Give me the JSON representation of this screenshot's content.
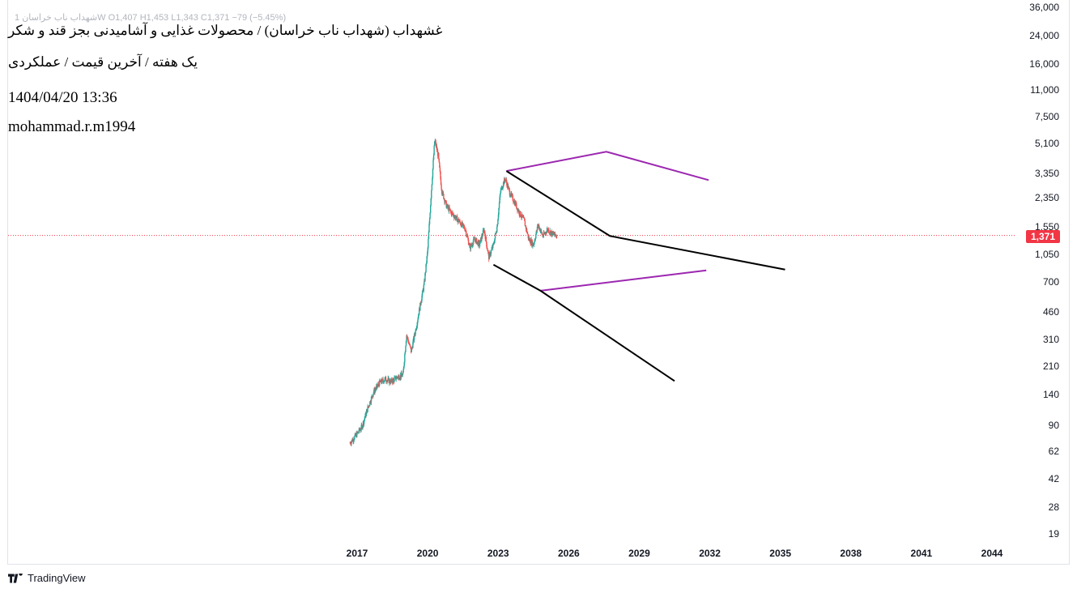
{
  "legend": {
    "ohlc_text": "1  شهداب ناب خراسانW  O1,407  H1,453  L1,343  C1,371  −79 (−5.45%)"
  },
  "overlay": {
    "title": "غشهداب (شهداب ناب خراسان) / محصولات غذایی و آشامیدنی بجز قند و شکر",
    "subtitle": "یک هفته / آخرین قیمت / عملکردی",
    "datetime": "1404/04/20 13:36",
    "author": "mohammad.r.m1994"
  },
  "last_price_label": "1,371",
  "brand": "TradingView",
  "colors": {
    "up": "#26a69a",
    "down": "#ef5350",
    "purple": "#9c27b0",
    "black": "#000000",
    "last_line": "#f23645"
  },
  "chart_data": {
    "type": "candlestick",
    "yscale": "log",
    "y_ticks": [
      19,
      28,
      42,
      62,
      90,
      140,
      210,
      310,
      460,
      700,
      1050,
      1550,
      2350,
      3350,
      5100,
      7500,
      11000,
      16000,
      24000,
      36000
    ],
    "y_tick_labels": [
      "19",
      "28",
      "42",
      "62",
      "90",
      "140",
      "210",
      "310",
      "460",
      "700",
      "1,050",
      "1,550",
      "2,350",
      "3,350",
      "5,100",
      "7,500",
      "11,000",
      "16,000",
      "24,000",
      "36,000"
    ],
    "x_ticks": [
      2017,
      2020,
      2023,
      2026,
      2029,
      2032,
      2035,
      2038,
      2041,
      2044
    ],
    "x_tick_labels": [
      "2017",
      "2020",
      "2023",
      "2026",
      "2029",
      "2032",
      "2035",
      "2038",
      "2041",
      "2044"
    ],
    "last_price": 1371,
    "price_path": [
      [
        2016.7,
        70
      ],
      [
        2016.95,
        78
      ],
      [
        2017.2,
        88
      ],
      [
        2017.45,
        115
      ],
      [
        2017.7,
        145
      ],
      [
        2017.95,
        165
      ],
      [
        2018.2,
        175
      ],
      [
        2018.45,
        168
      ],
      [
        2018.7,
        180
      ],
      [
        2018.95,
        185
      ],
      [
        2019.1,
        330
      ],
      [
        2019.3,
        260
      ],
      [
        2019.5,
        360
      ],
      [
        2019.7,
        520
      ],
      [
        2019.85,
        680
      ],
      [
        2020.0,
        1100
      ],
      [
        2020.15,
        2500
      ],
      [
        2020.3,
        5400
      ],
      [
        2020.45,
        4300
      ],
      [
        2020.6,
        2600
      ],
      [
        2020.8,
        2100
      ],
      [
        2021.0,
        1900
      ],
      [
        2021.3,
        1700
      ],
      [
        2021.6,
        1500
      ],
      [
        2021.8,
        1150
      ],
      [
        2022.0,
        1300
      ],
      [
        2022.2,
        1200
      ],
      [
        2022.4,
        1500
      ],
      [
        2022.6,
        1000
      ],
      [
        2022.8,
        1200
      ],
      [
        2022.95,
        1550
      ],
      [
        2023.1,
        2600
      ],
      [
        2023.3,
        3100
      ],
      [
        2023.5,
        2500
      ],
      [
        2023.7,
        2200
      ],
      [
        2023.9,
        1900
      ],
      [
        2024.1,
        1700
      ],
      [
        2024.3,
        1300
      ],
      [
        2024.5,
        1200
      ],
      [
        2024.7,
        1600
      ],
      [
        2024.9,
        1350
      ],
      [
        2025.1,
        1500
      ],
      [
        2025.3,
        1400
      ],
      [
        2025.5,
        1371
      ]
    ],
    "annotations": [
      {
        "color": "purple",
        "points": [
          [
            2023.35,
            3450
          ],
          [
            2027.6,
            4550
          ],
          [
            2031.95,
            3030
          ]
        ]
      },
      {
        "color": "black",
        "points": [
          [
            2023.35,
            3450
          ],
          [
            2027.75,
            1360
          ],
          [
            2035.2,
            840
          ]
        ]
      },
      {
        "color": "purple",
        "points": [
          [
            2024.8,
            620
          ],
          [
            2031.85,
            830
          ]
        ]
      },
      {
        "color": "black",
        "points": [
          [
            2022.8,
            900
          ],
          [
            2024.8,
            620
          ],
          [
            2030.5,
            170
          ]
        ]
      }
    ]
  }
}
